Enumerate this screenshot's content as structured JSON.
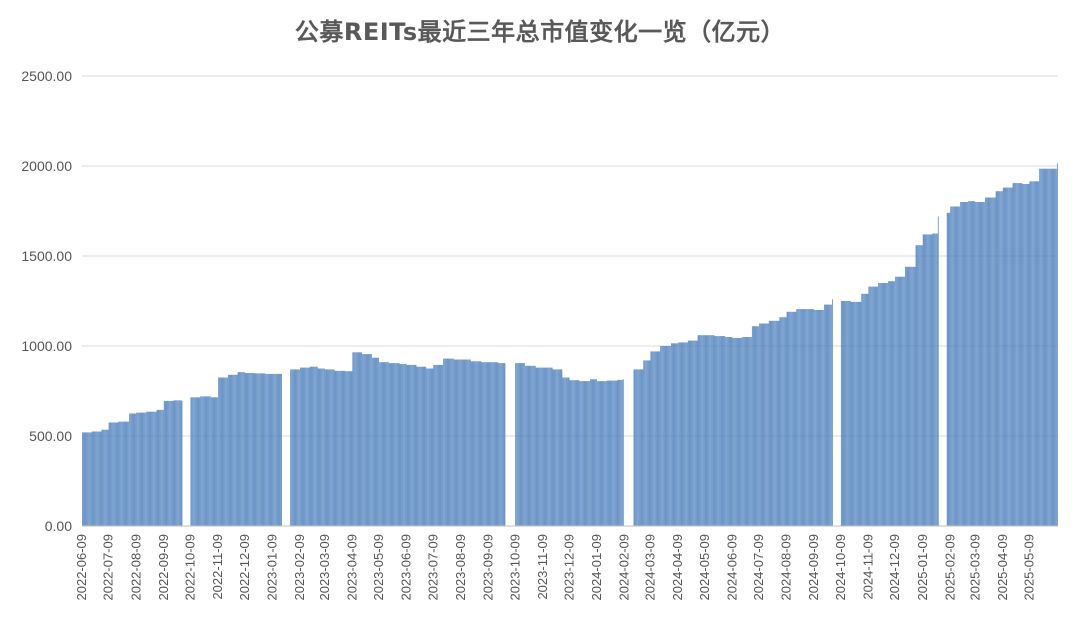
{
  "chart_data": {
    "type": "bar",
    "title": "公募REITs最近三年总市值变化一览（亿元）",
    "xlabel": "",
    "ylabel": "",
    "ylim": [
      0,
      2500
    ],
    "yticks": [
      "0.00",
      "500.00",
      "1000.00",
      "1500.00",
      "2000.00",
      "2500.00"
    ],
    "x_start": "2022-06-09",
    "x_end": "2025-06-09",
    "xticks": [
      "2022-06-09",
      "2022-07-09",
      "2022-08-09",
      "2022-09-09",
      "2022-10-09",
      "2022-11-09",
      "2022-12-09",
      "2023-01-09",
      "2023-02-09",
      "2023-03-09",
      "2023-04-09",
      "2023-05-09",
      "2023-06-09",
      "2023-07-09",
      "2023-08-09",
      "2023-09-09",
      "2023-10-09",
      "2023-11-09",
      "2023-12-09",
      "2024-01-09",
      "2024-02-09",
      "2024-03-09",
      "2024-04-09",
      "2024-05-09",
      "2024-06-09",
      "2024-07-09",
      "2024-08-09",
      "2024-09-09",
      "2024-10-09",
      "2024-11-09",
      "2024-12-09",
      "2025-01-09",
      "2025-02-09",
      "2025-03-09",
      "2025-04-09",
      "2025-05-09"
    ],
    "gaps": [
      [
        "2022-09-30",
        "2022-10-08"
      ],
      [
        "2023-01-20",
        "2023-01-28"
      ],
      [
        "2023-09-28",
        "2023-10-08"
      ],
      [
        "2024-02-08",
        "2024-02-18"
      ],
      [
        "2024-09-30",
        "2024-10-08"
      ],
      [
        "2025-01-27",
        "2025-02-04"
      ]
    ],
    "series": [
      {
        "color": "#4f81bd",
        "points": [
          [
            "2022-06-09",
            520
          ],
          [
            "2022-06-20",
            525
          ],
          [
            "2022-07-01",
            535
          ],
          [
            "2022-07-09",
            575
          ],
          [
            "2022-07-20",
            580
          ],
          [
            "2022-08-01",
            625
          ],
          [
            "2022-08-09",
            630
          ],
          [
            "2022-08-20",
            635
          ],
          [
            "2022-09-01",
            645
          ],
          [
            "2022-09-09",
            695
          ],
          [
            "2022-09-20",
            698
          ],
          [
            "2022-09-29",
            695
          ],
          [
            "2022-10-09",
            715
          ],
          [
            "2022-10-20",
            720
          ],
          [
            "2022-11-01",
            715
          ],
          [
            "2022-11-09",
            825
          ],
          [
            "2022-11-20",
            840
          ],
          [
            "2022-12-01",
            855
          ],
          [
            "2022-12-09",
            850
          ],
          [
            "2022-12-20",
            848
          ],
          [
            "2023-01-01",
            845
          ],
          [
            "2023-01-19",
            845
          ],
          [
            "2023-01-29",
            870
          ],
          [
            "2023-02-09",
            880
          ],
          [
            "2023-02-20",
            885
          ],
          [
            "2023-03-01",
            875
          ],
          [
            "2023-03-09",
            870
          ],
          [
            "2023-03-20",
            862
          ],
          [
            "2023-04-01",
            860
          ],
          [
            "2023-04-09",
            965
          ],
          [
            "2023-04-20",
            955
          ],
          [
            "2023-05-01",
            935
          ],
          [
            "2023-05-09",
            910
          ],
          [
            "2023-05-20",
            905
          ],
          [
            "2023-06-01",
            900
          ],
          [
            "2023-06-09",
            895
          ],
          [
            "2023-06-20",
            885
          ],
          [
            "2023-07-01",
            875
          ],
          [
            "2023-07-09",
            895
          ],
          [
            "2023-07-20",
            930
          ],
          [
            "2023-08-01",
            925
          ],
          [
            "2023-08-09",
            925
          ],
          [
            "2023-08-20",
            915
          ],
          [
            "2023-09-01",
            910
          ],
          [
            "2023-09-09",
            910
          ],
          [
            "2023-09-20",
            905
          ],
          [
            "2023-09-27",
            905
          ],
          [
            "2023-10-09",
            905
          ],
          [
            "2023-10-20",
            890
          ],
          [
            "2023-11-01",
            880
          ],
          [
            "2023-11-09",
            880
          ],
          [
            "2023-11-20",
            870
          ],
          [
            "2023-12-01",
            825
          ],
          [
            "2023-12-09",
            810
          ],
          [
            "2023-12-20",
            805
          ],
          [
            "2024-01-01",
            815
          ],
          [
            "2024-01-09",
            805
          ],
          [
            "2024-01-20",
            808
          ],
          [
            "2024-02-01",
            812
          ],
          [
            "2024-02-07",
            815
          ],
          [
            "2024-02-19",
            870
          ],
          [
            "2024-03-01",
            920
          ],
          [
            "2024-03-09",
            970
          ],
          [
            "2024-03-20",
            1000
          ],
          [
            "2024-04-01",
            1015
          ],
          [
            "2024-04-09",
            1020
          ],
          [
            "2024-04-20",
            1030
          ],
          [
            "2024-05-01",
            1060
          ],
          [
            "2024-05-09",
            1060
          ],
          [
            "2024-05-20",
            1055
          ],
          [
            "2024-06-01",
            1050
          ],
          [
            "2024-06-09",
            1045
          ],
          [
            "2024-06-20",
            1050
          ],
          [
            "2024-07-01",
            1110
          ],
          [
            "2024-07-09",
            1125
          ],
          [
            "2024-07-20",
            1140
          ],
          [
            "2024-08-01",
            1160
          ],
          [
            "2024-08-09",
            1190
          ],
          [
            "2024-08-20",
            1205
          ],
          [
            "2024-09-01",
            1205
          ],
          [
            "2024-09-09",
            1200
          ],
          [
            "2024-09-20",
            1230
          ],
          [
            "2024-09-29",
            1260
          ],
          [
            "2024-10-09",
            1250
          ],
          [
            "2024-10-20",
            1245
          ],
          [
            "2024-11-01",
            1290
          ],
          [
            "2024-11-09",
            1330
          ],
          [
            "2024-11-20",
            1350
          ],
          [
            "2024-12-01",
            1360
          ],
          [
            "2024-12-09",
            1385
          ],
          [
            "2024-12-20",
            1440
          ],
          [
            "2025-01-01",
            1560
          ],
          [
            "2025-01-09",
            1620
          ],
          [
            "2025-01-20",
            1625
          ],
          [
            "2025-01-26",
            1720
          ],
          [
            "2025-02-05",
            1740
          ],
          [
            "2025-02-09",
            1775
          ],
          [
            "2025-02-20",
            1800
          ],
          [
            "2025-03-01",
            1805
          ],
          [
            "2025-03-09",
            1800
          ],
          [
            "2025-03-20",
            1825
          ],
          [
            "2025-04-01",
            1860
          ],
          [
            "2025-04-09",
            1880
          ],
          [
            "2025-04-20",
            1905
          ],
          [
            "2025-05-01",
            1900
          ],
          [
            "2025-05-09",
            1915
          ],
          [
            "2025-05-20",
            1985
          ],
          [
            "2025-06-01",
            1985
          ],
          [
            "2025-06-09",
            2015
          ]
        ]
      }
    ],
    "grid": true,
    "legend": "none"
  }
}
